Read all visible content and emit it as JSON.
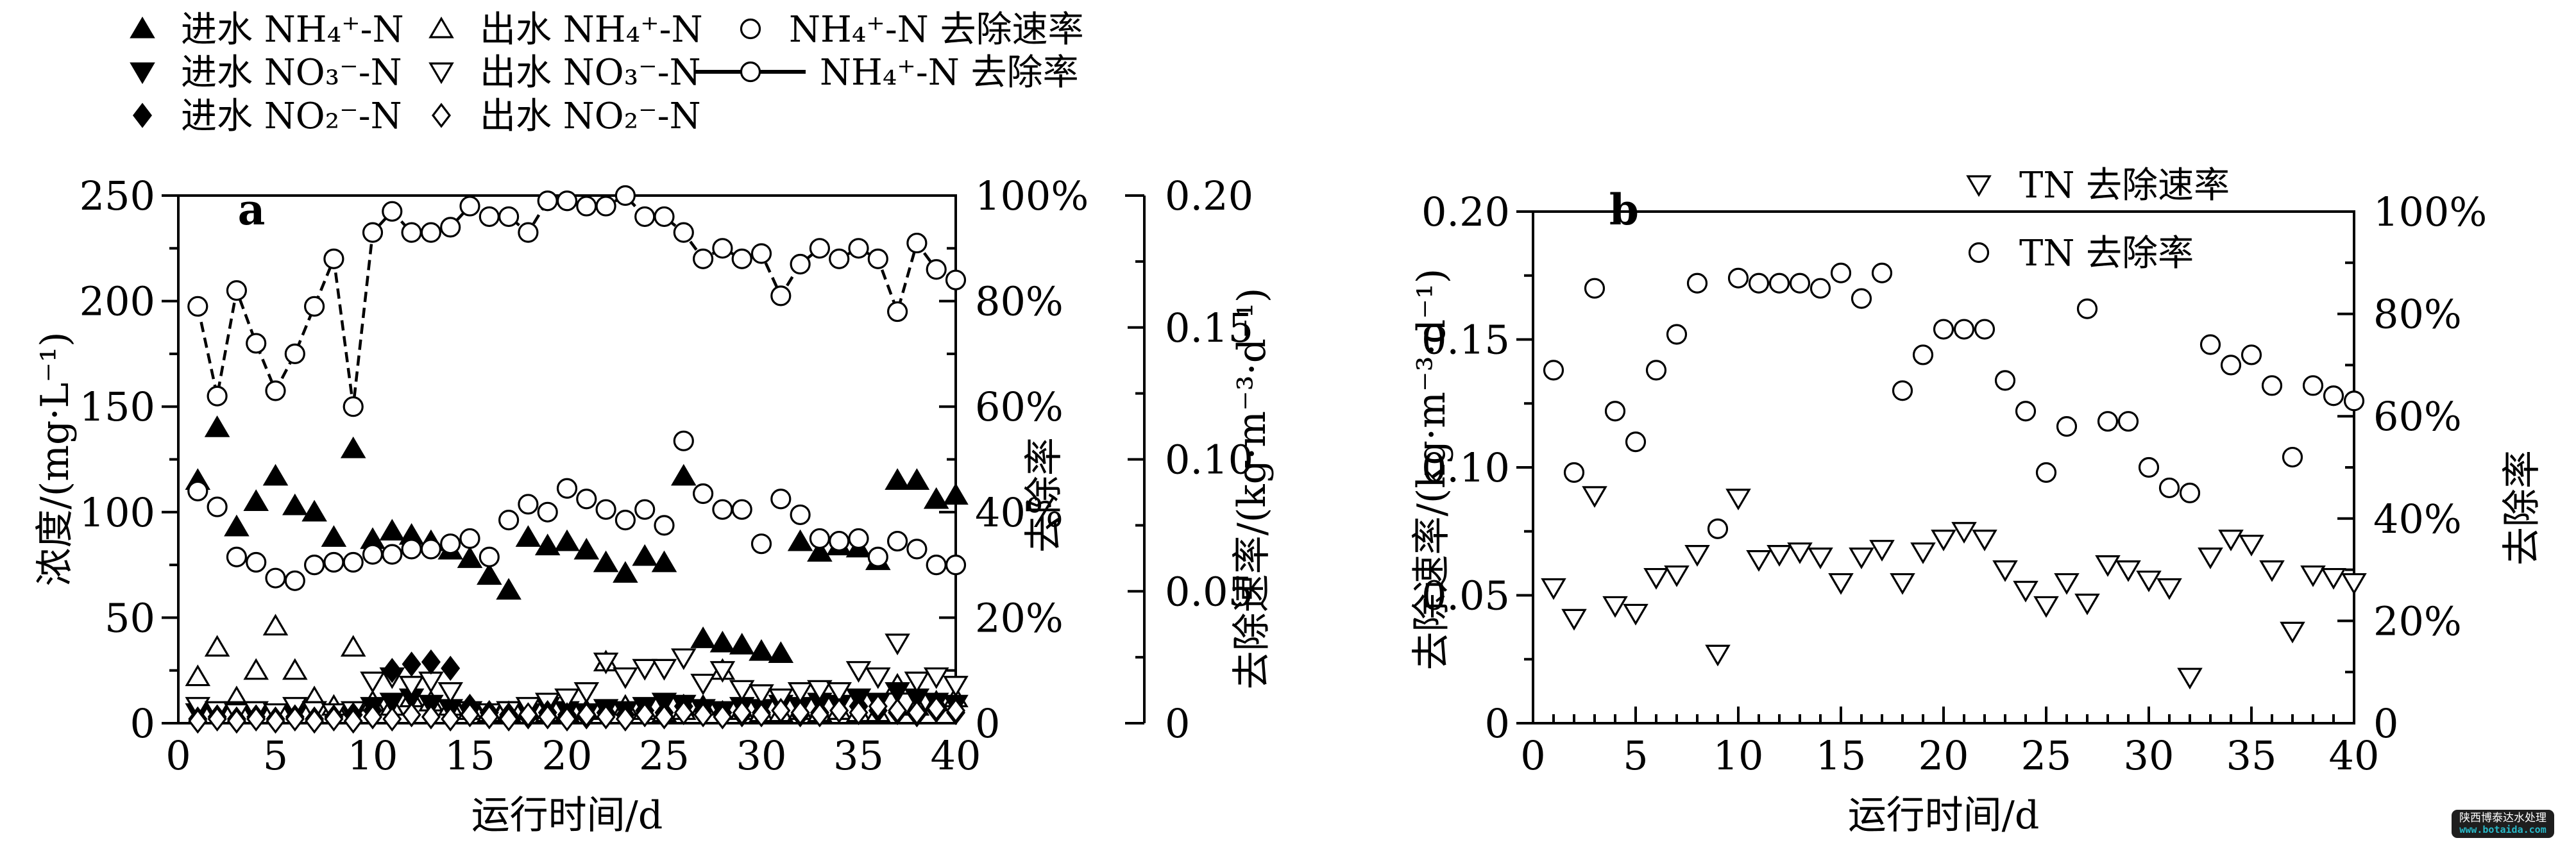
{
  "watermark": {
    "line1": "陕西博泰达水处理",
    "line2": "www.botaida.com",
    "bg_color": "#1e1e1e",
    "line1_color": "#ffffff",
    "line2_color": "#28b9c8"
  },
  "chart_data": [
    {
      "type": "scatter",
      "panel_label": "a",
      "xlabel": "运行时间/d",
      "x_range": [
        0,
        40
      ],
      "x_major_ticks": [
        0,
        5,
        10,
        15,
        20,
        25,
        30,
        35,
        40
      ],
      "x_minor_step": 1,
      "grid": "off",
      "legend_position": "top-left-above-plot",
      "axes": {
        "left": {
          "label": "浓度/(mg·L⁻¹)",
          "range": [
            0,
            250
          ],
          "major_ticks": [
            0,
            50,
            100,
            150,
            200,
            250
          ],
          "minor_step": 25
        },
        "right_pct": {
          "label": "去除率",
          "range": [
            0,
            100
          ],
          "tick_values": [
            0,
            20,
            40,
            60,
            80,
            100
          ],
          "tick_labels": [
            "0",
            "20%",
            "40%",
            "60%",
            "80%",
            "100%"
          ],
          "minor_step": 10
        },
        "right_rate": {
          "label": "去除速率/(kg·m⁻³·d⁻¹)",
          "range": [
            0,
            0.2
          ],
          "tick_values": [
            0,
            0.05,
            0.1,
            0.15,
            0.2
          ],
          "tick_labels": [
            "0",
            "0.05",
            "0.10",
            "0.15",
            "0.20"
          ],
          "minor_step": 0.025
        }
      },
      "x": [
        1,
        2,
        3,
        4,
        5,
        6,
        7,
        8,
        9,
        10,
        11,
        12,
        13,
        14,
        15,
        16,
        17,
        18,
        19,
        20,
        21,
        22,
        23,
        24,
        25,
        26,
        27,
        28,
        29,
        30,
        31,
        32,
        33,
        34,
        35,
        36,
        37,
        38,
        39,
        40
      ],
      "series": [
        {
          "name": "进水 NH₄⁺-N",
          "marker": "tri_up_filled",
          "axis": "left",
          "values": [
            115,
            140,
            93,
            105,
            117,
            103,
            100,
            88,
            130,
            87,
            91,
            89,
            86,
            82,
            78,
            70,
            63,
            88,
            84,
            86,
            82,
            76,
            71,
            79,
            76,
            117,
            40,
            38,
            37,
            34,
            33,
            86,
            81,
            84,
            83,
            77,
            115,
            115,
            106,
            108
          ]
        },
        {
          "name": "出水 NH₄⁺-N",
          "marker": "tri_up_open",
          "axis": "left",
          "values": [
            22,
            36,
            12,
            25,
            46,
            25,
            12,
            8,
            36,
            10,
            8,
            12,
            10,
            8,
            6,
            5,
            5,
            6,
            5,
            5,
            6,
            29,
            8,
            6,
            5,
            6,
            8,
            25,
            6,
            5,
            5,
            6,
            5,
            6,
            5,
            5,
            18,
            8,
            10,
            12
          ]
        },
        {
          "name": "进水 NO₃⁻-N",
          "marker": "tri_down_filled",
          "axis": "left",
          "values": [
            5,
            4,
            6,
            3,
            5,
            4,
            6,
            5,
            4,
            8,
            10,
            12,
            9,
            7,
            5,
            4,
            6,
            5,
            8,
            6,
            5,
            7,
            6,
            8,
            10,
            9,
            7,
            6,
            8,
            7,
            9,
            8,
            10,
            9,
            12,
            10,
            15,
            12,
            10,
            9
          ]
        },
        {
          "name": "出水 NO₃⁻-N",
          "marker": "tri_down_open",
          "axis": "left",
          "values": [
            8,
            6,
            5,
            6,
            5,
            8,
            6,
            5,
            6,
            20,
            22,
            18,
            20,
            15,
            6,
            5,
            6,
            8,
            10,
            12,
            15,
            29,
            22,
            26,
            26,
            31,
            19,
            25,
            16,
            14,
            12,
            15,
            16,
            15,
            25,
            22,
            38,
            20,
            22,
            18
          ]
        },
        {
          "name": "进水 NO₂⁻-N",
          "marker": "diamond_filled",
          "axis": "left",
          "values": [
            2,
            3,
            2,
            3,
            2,
            3,
            2,
            3,
            4,
            6,
            25,
            28,
            29,
            26,
            8,
            5,
            4,
            3,
            5,
            4,
            3,
            5,
            4,
            6,
            5,
            8,
            6,
            5,
            4,
            5,
            6,
            4,
            5,
            6,
            8,
            6,
            5,
            4,
            6,
            5
          ]
        },
        {
          "name": "出水 NO₂⁻-N",
          "marker": "diamond_open",
          "axis": "left",
          "values": [
            1,
            2,
            1,
            2,
            1,
            2,
            1,
            2,
            1,
            3,
            2,
            4,
            3,
            2,
            4,
            3,
            2,
            4,
            3,
            2,
            4,
            3,
            2,
            4,
            3,
            5,
            4,
            3,
            5,
            4,
            6,
            5,
            4,
            6,
            5,
            8,
            6,
            5,
            7,
            6
          ]
        },
        {
          "name": "NH₄⁺-N 去除速率",
          "marker": "circle_open",
          "axis": "right_rate",
          "values": [
            0.088,
            0.082,
            0.063,
            0.061,
            0.055,
            0.054,
            0.06,
            0.061,
            0.061,
            0.064,
            0.064,
            0.066,
            0.066,
            0.068,
            0.07,
            0.063,
            0.077,
            0.083,
            0.08,
            0.089,
            0.085,
            0.081,
            0.077,
            0.081,
            0.075,
            0.107,
            0.087,
            0.081,
            0.081,
            0.068,
            0.085,
            0.079,
            0.07,
            0.069,
            0.07,
            0.063,
            0.069,
            0.066,
            0.06,
            0.06
          ]
        },
        {
          "name": "NH₄⁺-N 去除率",
          "marker": "circle_open",
          "line": true,
          "axis": "right_pct",
          "values": [
            79,
            62,
            82,
            72,
            63,
            70,
            79,
            88,
            60,
            93,
            97,
            93,
            93,
            94,
            98,
            96,
            96,
            93,
            99,
            99,
            98,
            98,
            100,
            96,
            96,
            93,
            88,
            90,
            88,
            89,
            81,
            87,
            90,
            88,
            90,
            88,
            78,
            91,
            86,
            84
          ]
        }
      ],
      "legend": [
        {
          "marker": "tri_up_filled",
          "label": "进水 NH₄⁺-N"
        },
        {
          "marker": "tri_up_open",
          "label": "出水 NH₄⁺-N"
        },
        {
          "marker": "circle_open",
          "label": "NH₄⁺-N 去除速率"
        },
        {
          "marker": "tri_down_filled",
          "label": "进水 NO₃⁻-N"
        },
        {
          "marker": "tri_down_open",
          "label": "出水 NO₃⁻-N"
        },
        {
          "marker": "circle_line",
          "label": "NH₄⁺-N 去除率"
        },
        {
          "marker": "diamond_filled",
          "label": "进水 NO₂⁻-N"
        },
        {
          "marker": "diamond_open",
          "label": "出水 NO₂⁻-N"
        }
      ]
    },
    {
      "type": "scatter",
      "panel_label": "b",
      "xlabel": "运行时间/d",
      "x_range": [
        0,
        40
      ],
      "x_major_ticks": [
        0,
        5,
        10,
        15,
        20,
        25,
        30,
        35,
        40
      ],
      "x_minor_step": 1,
      "grid": "off",
      "legend_position": "top-center-inside",
      "axes": {
        "left": {
          "label": "去除速率/(kg·m⁻³·d⁻¹)",
          "range": [
            0,
            0.2
          ],
          "tick_values": [
            0,
            0.05,
            0.1,
            0.15,
            0.2
          ],
          "tick_labels": [
            "0",
            "0.05",
            "0.10",
            "0.15",
            "0.20"
          ],
          "minor_step": 0.025
        },
        "right_pct": {
          "label": "去除率",
          "range": [
            0,
            100
          ],
          "tick_values": [
            0,
            20,
            40,
            60,
            80,
            100
          ],
          "tick_labels": [
            "0",
            "20%",
            "40%",
            "60%",
            "80%",
            "100%"
          ],
          "minor_step": 10
        }
      },
      "x": [
        1,
        2,
        3,
        4,
        5,
        6,
        7,
        8,
        9,
        10,
        11,
        12,
        13,
        14,
        15,
        16,
        17,
        18,
        19,
        20,
        21,
        22,
        23,
        24,
        25,
        26,
        27,
        28,
        29,
        30,
        31,
        32,
        33,
        34,
        35,
        36,
        37,
        38,
        39,
        40
      ],
      "series": [
        {
          "name": "TN 去除速率",
          "marker": "tri_down_open",
          "axis": "left",
          "values": [
            0.053,
            0.041,
            0.089,
            0.046,
            0.043,
            0.057,
            0.058,
            0.066,
            0.027,
            0.088,
            0.064,
            0.066,
            0.067,
            0.065,
            0.055,
            0.065,
            0.068,
            0.055,
            0.067,
            0.072,
            0.075,
            0.072,
            0.06,
            0.052,
            0.046,
            0.055,
            0.047,
            0.062,
            0.06,
            0.056,
            0.053,
            0.018,
            0.065,
            0.072,
            0.07,
            0.06,
            0.036,
            0.058,
            0.057,
            0.055
          ]
        },
        {
          "name": "TN 去除率",
          "marker": "circle_open",
          "axis": "right_pct",
          "values": [
            69,
            49,
            85,
            61,
            55,
            69,
            76,
            86,
            38,
            87,
            86,
            86,
            86,
            85,
            88,
            83,
            88,
            65,
            72,
            77,
            77,
            77,
            67,
            61,
            49,
            58,
            81,
            59,
            59,
            50,
            46,
            45,
            74,
            70,
            72,
            66,
            52,
            66,
            64,
            63
          ]
        }
      ],
      "legend": [
        {
          "marker": "tri_down_open",
          "label": "TN 去除速率"
        },
        {
          "marker": "circle_open",
          "label": "TN 去除率"
        }
      ]
    }
  ]
}
